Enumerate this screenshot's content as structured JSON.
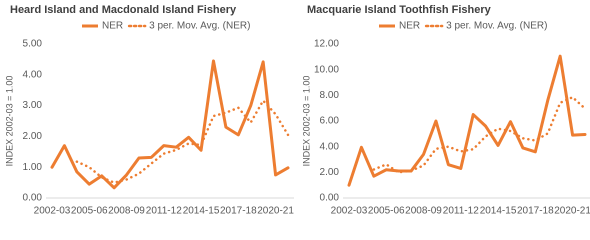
{
  "chart_data": [
    {
      "type": "line",
      "title": "Heard Island and Macdonald Island Fishery",
      "y_label": "INDEX 2002-03  =  1.00",
      "categories": [
        "2002-03",
        null,
        null,
        "2005-06",
        null,
        null,
        "2008-09",
        null,
        null,
        "2011-12",
        null,
        null,
        "2014-15",
        null,
        null,
        "2017-18",
        null,
        null,
        "2020-21",
        null
      ],
      "series": [
        {
          "name": "NER",
          "color": "#ED7D31",
          "style": "solid",
          "values": [
            1.0,
            1.7,
            0.85,
            0.45,
            0.72,
            0.33,
            0.75,
            1.3,
            1.32,
            1.7,
            1.65,
            1.97,
            1.55,
            4.45,
            2.3,
            2.05,
            3.0,
            4.42,
            0.75,
            0.98
          ]
        },
        {
          "name": "3 per. Mov. Avg. (NER)",
          "color": "#ED7D31",
          "style": "dotted",
          "values": [
            null,
            null,
            1.18,
            1.0,
            0.67,
            0.5,
            0.6,
            0.79,
            1.12,
            1.44,
            1.56,
            1.77,
            1.72,
            2.66,
            2.77,
            2.93,
            2.45,
            3.16,
            2.72,
            2.05
          ]
        }
      ],
      "ylim": [
        0,
        5
      ],
      "yticks": [
        {
          "value": 0,
          "label": "0.00"
        },
        {
          "value": 1,
          "label": "1.00"
        },
        {
          "value": 2,
          "label": "2.00"
        },
        {
          "value": 3,
          "label": "3.00"
        },
        {
          "value": 4,
          "label": "4.00"
        },
        {
          "value": 5,
          "label": "5.00"
        }
      ],
      "legend": "top"
    },
    {
      "type": "line",
      "title": "Macquarie Island Toothfish Fishery",
      "y_label": "INDEX 2002-03  =  1.00",
      "categories": [
        "2002-03",
        null,
        null,
        "2005-06",
        null,
        null,
        "2008-09",
        null,
        null,
        "2011-12",
        null,
        null,
        "2014-15",
        null,
        null,
        "2017-18",
        null,
        null,
        "2020-21",
        null
      ],
      "series": [
        {
          "name": "NER",
          "color": "#ED7D31",
          "style": "solid",
          "values": [
            1.0,
            3.95,
            1.7,
            2.2,
            2.1,
            2.1,
            3.4,
            6.0,
            2.6,
            2.3,
            6.5,
            5.6,
            4.1,
            5.95,
            3.9,
            3.6,
            7.6,
            11.05,
            4.9,
            4.95
          ]
        },
        {
          "name": "3 per. Mov. Avg. (NER)",
          "color": "#ED7D31",
          "style": "dotted",
          "values": [
            null,
            null,
            2.22,
            2.62,
            2.0,
            2.13,
            2.53,
            3.83,
            4.0,
            3.63,
            3.8,
            4.8,
            5.4,
            5.22,
            4.65,
            4.48,
            5.03,
            7.42,
            7.85,
            6.97
          ]
        }
      ],
      "ylim": [
        0,
        12
      ],
      "yticks": [
        {
          "value": 0,
          "label": "0.00"
        },
        {
          "value": 2,
          "label": "2.00"
        },
        {
          "value": 4,
          "label": "4.00"
        },
        {
          "value": 6,
          "label": "6.00"
        },
        {
          "value": 8,
          "label": "8.00"
        },
        {
          "value": 10,
          "label": "10.00"
        },
        {
          "value": 12,
          "label": "12.00"
        }
      ],
      "legend": "top"
    }
  ]
}
